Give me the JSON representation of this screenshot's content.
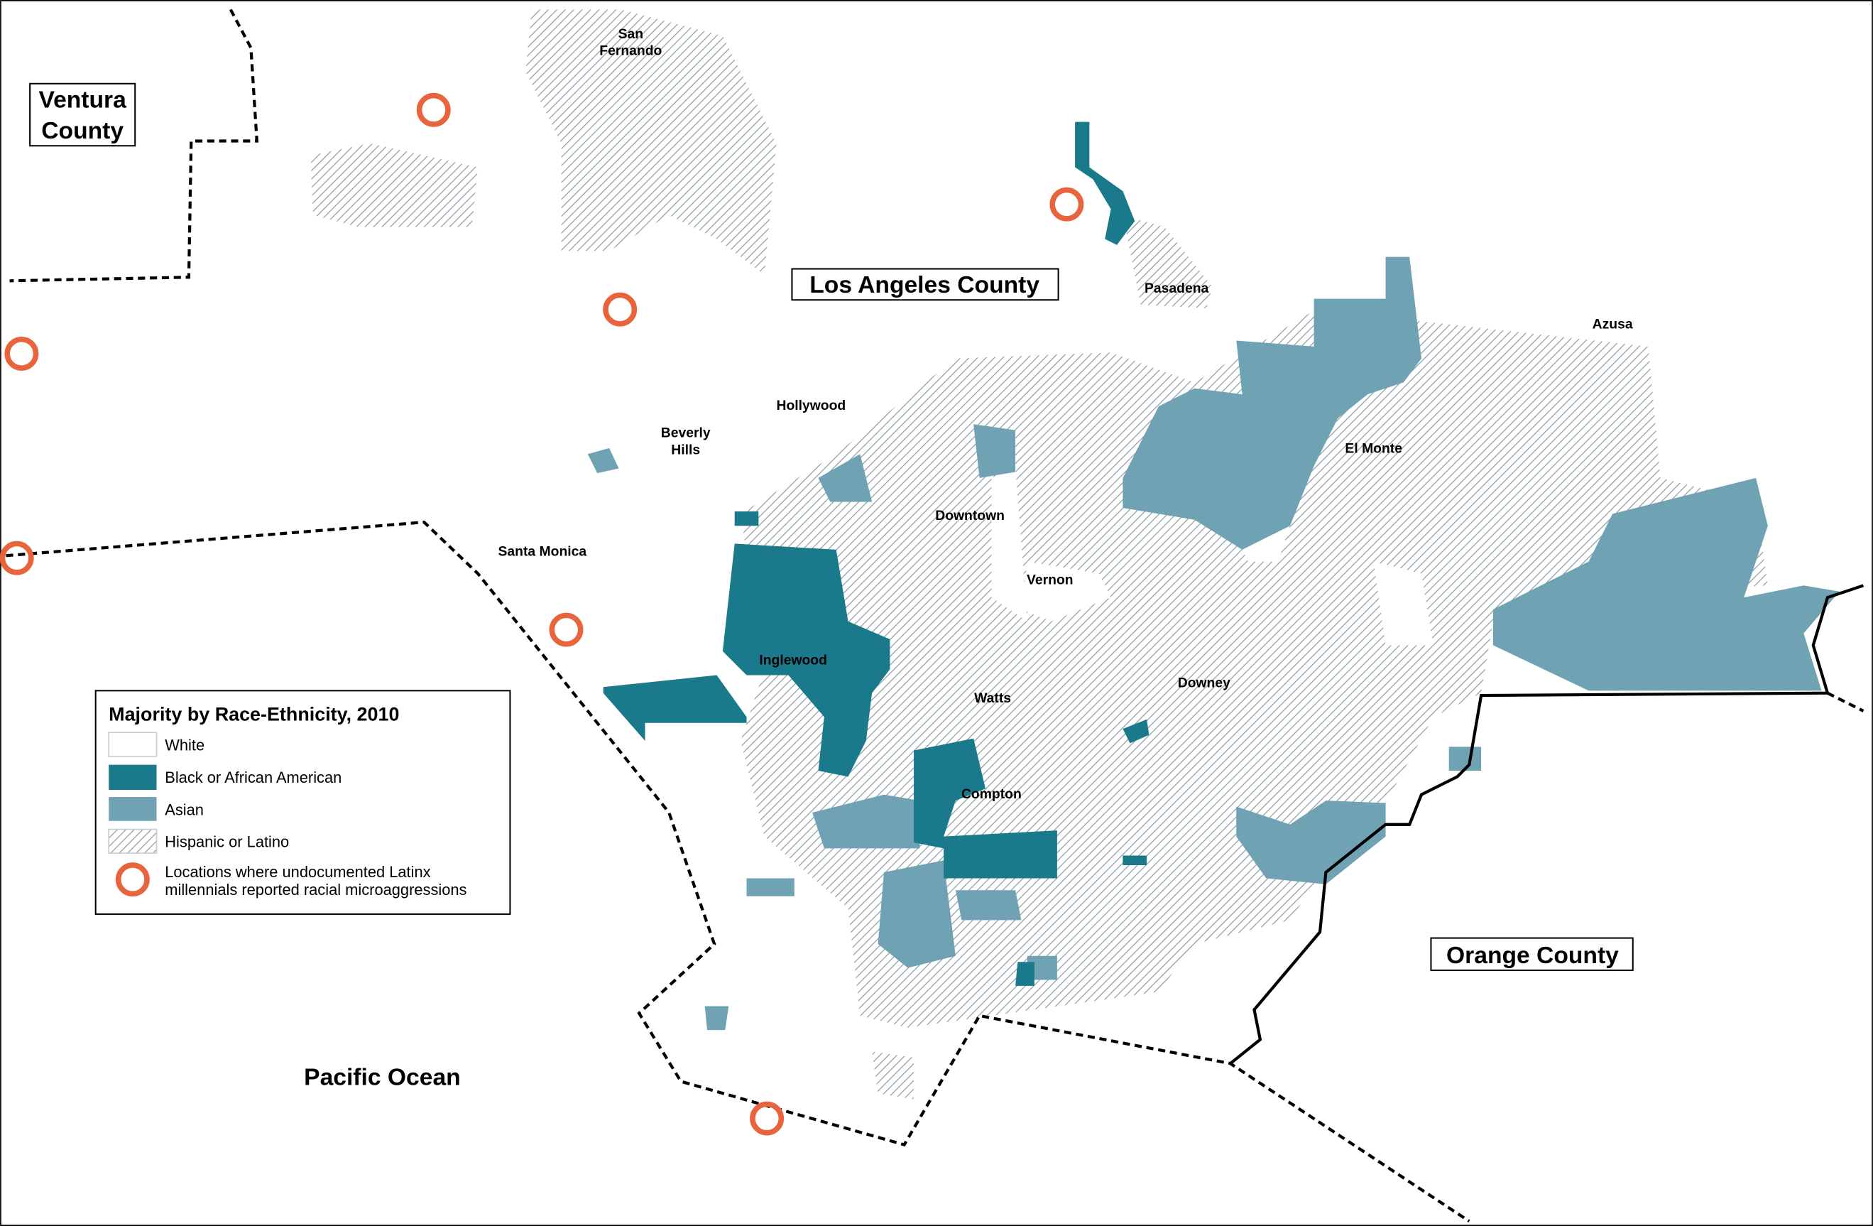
{
  "counties": [
    [
      "Ventura",
      "County"
    ],
    [
      "Los Angeles County"
    ],
    [
      "Orange County"
    ]
  ],
  "ocean": "Pacific Ocean",
  "cities": [
    [
      "San",
      "Fernando"
    ],
    [
      "Pasadena"
    ],
    [
      "Azusa"
    ],
    [
      "Hollywood"
    ],
    [
      "Beverly",
      "Hills"
    ],
    [
      "El Monte"
    ],
    [
      "Downtown"
    ],
    [
      "Santa Monica"
    ],
    [
      "Vernon"
    ],
    [
      "Inglewood"
    ],
    [
      "Watts"
    ],
    [
      "Downey"
    ],
    [
      "Compton"
    ]
  ],
  "legend": {
    "title": "Majority by Race-Ethnicity, 2010",
    "items": [
      [
        "White"
      ],
      [
        "Black or African American"
      ],
      [
        "Asian"
      ],
      [
        "Hispanic or Latino"
      ],
      [
        "Locations where undocumented Latinx",
        "millennials reported racial microaggressions"
      ]
    ]
  }
}
